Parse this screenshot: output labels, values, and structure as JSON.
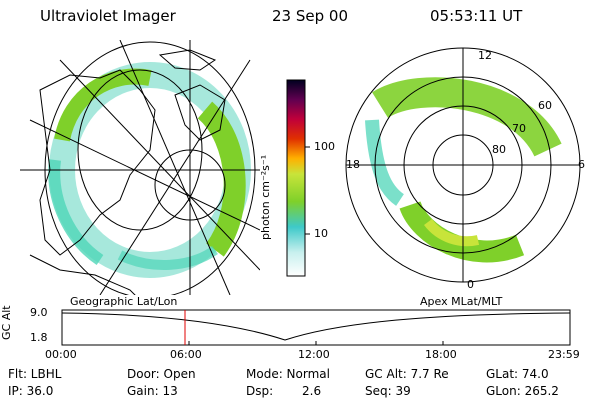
{
  "header": {
    "instrument": "Ultraviolet Imager",
    "date": "23 Sep 00",
    "time": "05:53:11 UT"
  },
  "colorbar": {
    "unit_label": "photon cm⁻²s⁻¹",
    "ticks": [
      "100",
      "10"
    ]
  },
  "left_panel": {
    "caption": "Geographic Lat/Lon"
  },
  "right_panel": {
    "caption": "Apex MLat/MLT",
    "mlt_labels": [
      "12",
      "18",
      "6",
      "0"
    ],
    "lat_labels": [
      "60",
      "70",
      "80"
    ]
  },
  "altitude_plot": {
    "axis_label": "GC Alt",
    "y_ticks": [
      "9.0",
      "1.8"
    ],
    "x_ticks": [
      "00:00",
      "06:00",
      "12:00",
      "18:00",
      "23:59"
    ],
    "current_time_marker": "06:00"
  },
  "info": {
    "filter": "Flt: LBHL",
    "door": "Door: Open",
    "mode": "Mode: Normal",
    "gc_alt": "GC Alt: 7.7 Re",
    "glat": "GLat:  74.0",
    "ip": "IP: 36.0",
    "gain": "Gain: 13",
    "dsp_label": "Dsp:",
    "dsp_value": "2.6",
    "seq": "Seq: 39",
    "glon": "GLon: 265.2"
  },
  "colors": {
    "aurora_low": "#4fd6b8",
    "aurora_mid": "#7fd02a",
    "aurora_high": "#c8e43a",
    "marker": "#e00000"
  }
}
